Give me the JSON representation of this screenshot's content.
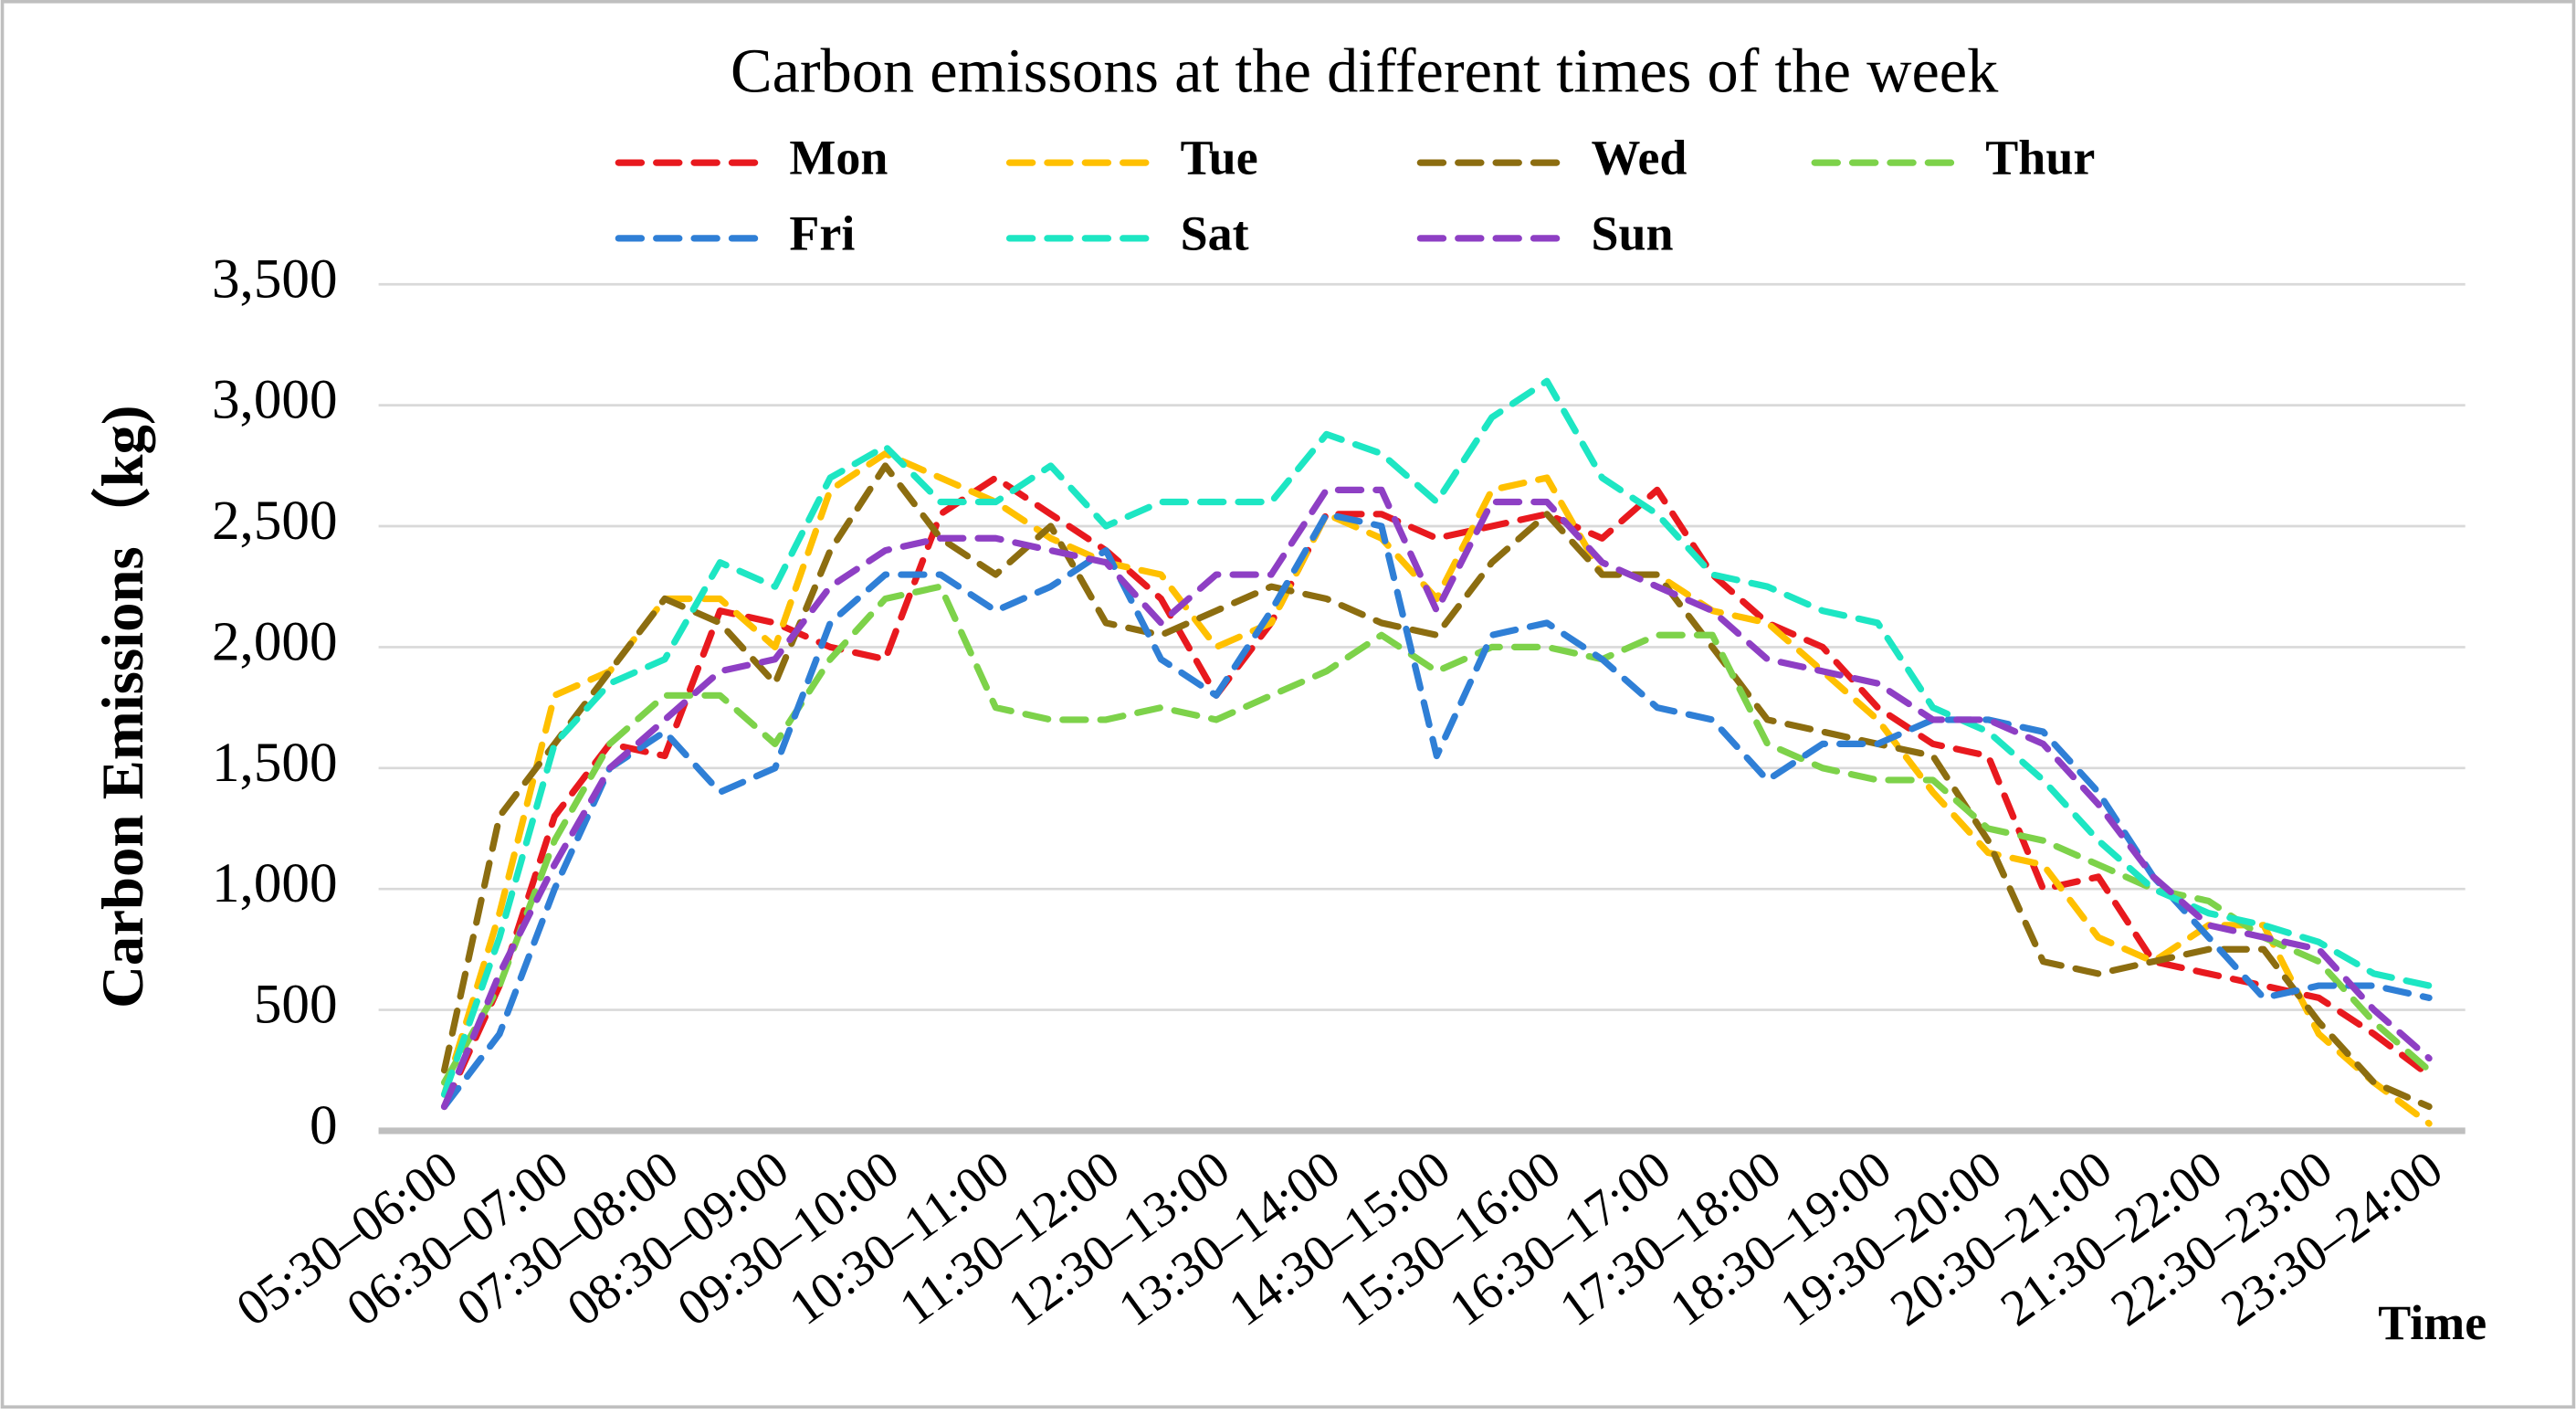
{
  "chart_data": {
    "type": "line",
    "title": "Carbon emissons at the different times of the week",
    "y_label": "Carbon Emissions（kg)",
    "x_label": "Time",
    "categories": [
      "05:30–06:00",
      null,
      "06:30–07:00",
      null,
      "07:30–08:00",
      null,
      "08:30–09:00",
      null,
      "09:30–10:00",
      null,
      "10:30–11:00",
      null,
      "11:30–12:00",
      null,
      "12:30–13:00",
      null,
      "13:30–14:00",
      null,
      "14:30–15:00",
      null,
      "15:30–16:00",
      null,
      "16:30–17:00",
      null,
      "17:30–18:00",
      null,
      "18:30–19:00",
      null,
      "19:30–20:00",
      null,
      "20:30–21:00",
      null,
      "21:30–22:00",
      null,
      "22:30–23:00",
      null,
      "23:30–24:00"
    ],
    "series": [
      {
        "name": "Mon",
        "color": "#e8191e",
        "values": [
          100,
          600,
          1300,
          1600,
          1550,
          2150,
          2100,
          2000,
          1950,
          2550,
          2700,
          2550,
          2400,
          2200,
          1800,
          2100,
          2550,
          2550,
          2450,
          2500,
          2550,
          2450,
          2650,
          2300,
          2100,
          2000,
          1750,
          1600,
          1550,
          1000,
          1050,
          700,
          650,
          600,
          550,
          400,
          230
        ]
      },
      {
        "name": "Tue",
        "color": "#ffc000",
        "values": [
          150,
          900,
          1800,
          1900,
          2200,
          2200,
          2000,
          2650,
          2800,
          2700,
          2600,
          2450,
          2350,
          2300,
          2000,
          2100,
          2550,
          2450,
          2200,
          2650,
          2700,
          2300,
          2300,
          2150,
          2100,
          1900,
          1700,
          1400,
          1150,
          1100,
          800,
          700,
          850,
          850,
          400,
          200,
          30
        ]
      },
      {
        "name": "Wed",
        "color": "#8c6d10",
        "values": [
          250,
          1300,
          1600,
          1900,
          2200,
          2100,
          1850,
          2400,
          2750,
          2450,
          2300,
          2500,
          2100,
          2050,
          2150,
          2250,
          2200,
          2100,
          2050,
          2350,
          2550,
          2300,
          2300,
          2000,
          1700,
          1650,
          1600,
          1550,
          1200,
          700,
          650,
          700,
          750,
          750,
          450,
          200,
          100
        ]
      },
      {
        "name": "Thur",
        "color": "#7dd24a",
        "values": [
          200,
          600,
          1200,
          1600,
          1800,
          1800,
          1600,
          1950,
          2200,
          2250,
          1750,
          1700,
          1700,
          1750,
          1700,
          1800,
          1900,
          2050,
          1900,
          2000,
          2000,
          1950,
          2050,
          2050,
          1600,
          1500,
          1450,
          1450,
          1250,
          1200,
          1100,
          1000,
          950,
          800,
          700,
          450,
          250
        ]
      },
      {
        "name": "Fri",
        "color": "#2f7fd6",
        "values": [
          100,
          400,
          1000,
          1500,
          1650,
          1400,
          1500,
          2100,
          2300,
          2300,
          2150,
          2250,
          2400,
          1950,
          1800,
          2150,
          2550,
          2500,
          1550,
          2050,
          2100,
          1950,
          1750,
          1700,
          1450,
          1600,
          1600,
          1700,
          1700,
          1650,
          1400,
          1050,
          800,
          550,
          600,
          600,
          550
        ]
      },
      {
        "name": "Sat",
        "color": "#1de6c3",
        "values": [
          150,
          800,
          1600,
          1850,
          1950,
          2350,
          2250,
          2700,
          2830,
          2600,
          2600,
          2750,
          2500,
          2600,
          2600,
          2600,
          2880,
          2800,
          2600,
          2950,
          3100,
          2700,
          2550,
          2300,
          2250,
          2150,
          2100,
          1750,
          1650,
          1450,
          1200,
          1000,
          900,
          850,
          780,
          650,
          600
        ]
      },
      {
        "name": "Sun",
        "color": "#8e3fc4",
        "values": [
          100,
          650,
          1100,
          1500,
          1700,
          1900,
          1950,
          2250,
          2400,
          2450,
          2450,
          2400,
          2350,
          2100,
          2300,
          2300,
          2650,
          2650,
          2150,
          2600,
          2600,
          2350,
          2250,
          2150,
          1950,
          1900,
          1850,
          1700,
          1700,
          1600,
          1350,
          1050,
          850,
          800,
          750,
          500,
          300
        ]
      }
    ],
    "ylim": [
      0,
      3500
    ],
    "yticks": [
      0,
      500,
      {
        "value": 1000,
        "label": "1,000"
      },
      {
        "value": 1500,
        "label": "1,500"
      },
      {
        "value": 2000,
        "label": "2,000"
      },
      {
        "value": 2500,
        "label": "2,500"
      },
      {
        "value": 3000,
        "label": "3,000"
      },
      {
        "value": 3500,
        "label": "3,500"
      }
    ],
    "grid": true,
    "legend": "top"
  }
}
